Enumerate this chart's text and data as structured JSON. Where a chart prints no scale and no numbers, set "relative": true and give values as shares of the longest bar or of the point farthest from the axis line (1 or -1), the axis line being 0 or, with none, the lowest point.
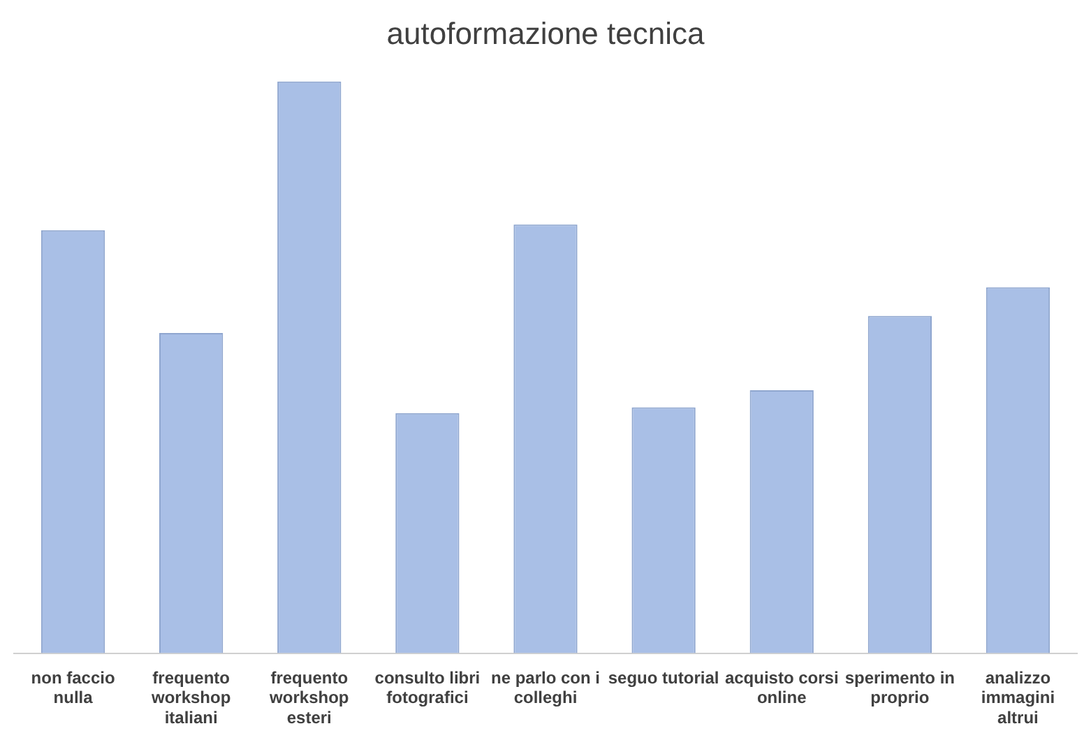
{
  "chart_data": {
    "type": "bar",
    "title": "autoformazione tecnica",
    "relative": true,
    "categories": [
      "non faccio  nulla",
      "frequento workshop italiani",
      "frequento workshop esteri",
      "consulto libri fotografici",
      "ne parlo con i colleghi",
      "seguo tutorial",
      "acquisto  corsi online",
      "sperimento in proprio",
      "analizzo  immagini altrui"
    ],
    "values": [
      0.74,
      0.56,
      1,
      0.42,
      0.75,
      0.43,
      0.46,
      0.59,
      0.64
    ],
    "color": "#a9bfe6"
  }
}
